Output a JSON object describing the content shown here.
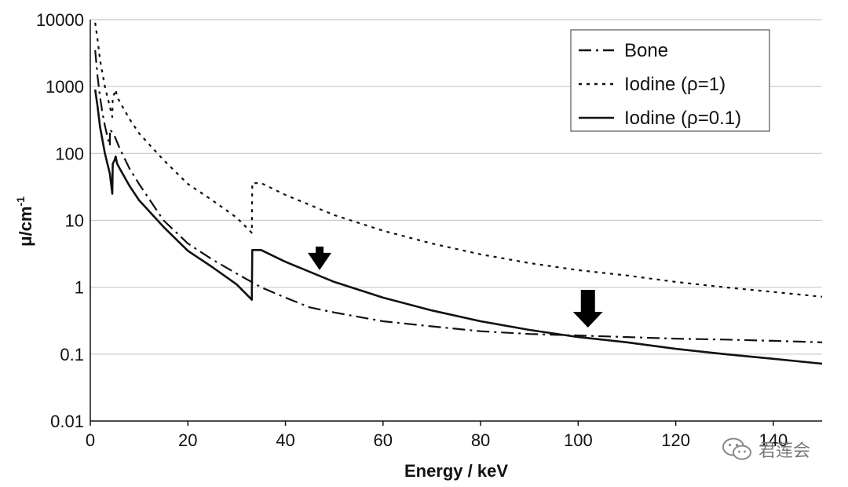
{
  "chart_data": {
    "type": "line",
    "title": "",
    "xlabel": "Energy / keV",
    "ylabel": "μ/cm",
    "ylabel_superscript": "-1",
    "xlim": [
      0,
      150
    ],
    "ylim": [
      0.01,
      10000
    ],
    "y_scale": "log",
    "grid": "horizontal",
    "legend_position": "top-right",
    "x_ticks": [
      "0",
      "20",
      "40",
      "60",
      "80",
      "100",
      "120",
      "140"
    ],
    "y_ticks": [
      "0.01",
      "0.1",
      "1",
      "10",
      "100",
      "1000",
      "10000"
    ],
    "series": [
      {
        "name": "Bone",
        "style": "dash-dot",
        "x": [
          1,
          1.5,
          2,
          2.5,
          3,
          3.5,
          4,
          4.05,
          5,
          6,
          8,
          10,
          15,
          20,
          25,
          30,
          35,
          40,
          45,
          50,
          60,
          70,
          80,
          90,
          100,
          110,
          120,
          130,
          140,
          150
        ],
        "y": [
          3500,
          1400,
          700,
          400,
          260,
          180,
          130,
          230,
          180,
          120,
          60,
          35,
          10,
          4.5,
          2.6,
          1.6,
          1.0,
          0.7,
          0.5,
          0.42,
          0.31,
          0.26,
          0.22,
          0.2,
          0.19,
          0.18,
          0.17,
          0.165,
          0.158,
          0.15
        ]
      },
      {
        "name": "Iodine (ρ=1)",
        "style": "dotted",
        "x": [
          1,
          1.5,
          2,
          3,
          4,
          4.5,
          4.6,
          5,
          5.2,
          5.5,
          6,
          8,
          10,
          15,
          20,
          25,
          30,
          33.1,
          33.2,
          35,
          40,
          50,
          60,
          70,
          80,
          90,
          100,
          110,
          120,
          130,
          140,
          150
        ],
        "y": [
          9000,
          5000,
          2500,
          1000,
          500,
          350,
          700,
          800,
          900,
          700,
          600,
          330,
          200,
          80,
          35,
          20,
          11,
          6.5,
          36,
          36,
          24,
          12,
          7,
          4.5,
          3.1,
          2.3,
          1.8,
          1.5,
          1.2,
          1.0,
          0.85,
          0.72
        ]
      },
      {
        "name": "Iodine (ρ=0.1)",
        "style": "solid",
        "x": [
          1,
          1.5,
          2,
          3,
          4,
          4.5,
          4.6,
          5,
          5.2,
          5.5,
          6,
          8,
          10,
          15,
          20,
          25,
          30,
          33.1,
          33.2,
          35,
          40,
          50,
          60,
          70,
          80,
          90,
          100,
          110,
          120,
          130,
          140,
          150
        ],
        "y": [
          900,
          500,
          250,
          100,
          50,
          25,
          70,
          80,
          90,
          70,
          60,
          33,
          20,
          8,
          3.5,
          2,
          1.1,
          0.65,
          3.6,
          3.6,
          2.4,
          1.2,
          0.7,
          0.45,
          0.31,
          0.23,
          0.18,
          0.15,
          0.12,
          0.1,
          0.085,
          0.072
        ]
      }
    ],
    "annotations": [
      {
        "type": "arrow-down",
        "size": "small",
        "x": 47,
        "y": 1.8
      },
      {
        "type": "arrow-down",
        "size": "large",
        "x": 102,
        "y": 0.25
      }
    ]
  },
  "watermark": {
    "text": "君莲会",
    "icon": "wechat-icon"
  }
}
